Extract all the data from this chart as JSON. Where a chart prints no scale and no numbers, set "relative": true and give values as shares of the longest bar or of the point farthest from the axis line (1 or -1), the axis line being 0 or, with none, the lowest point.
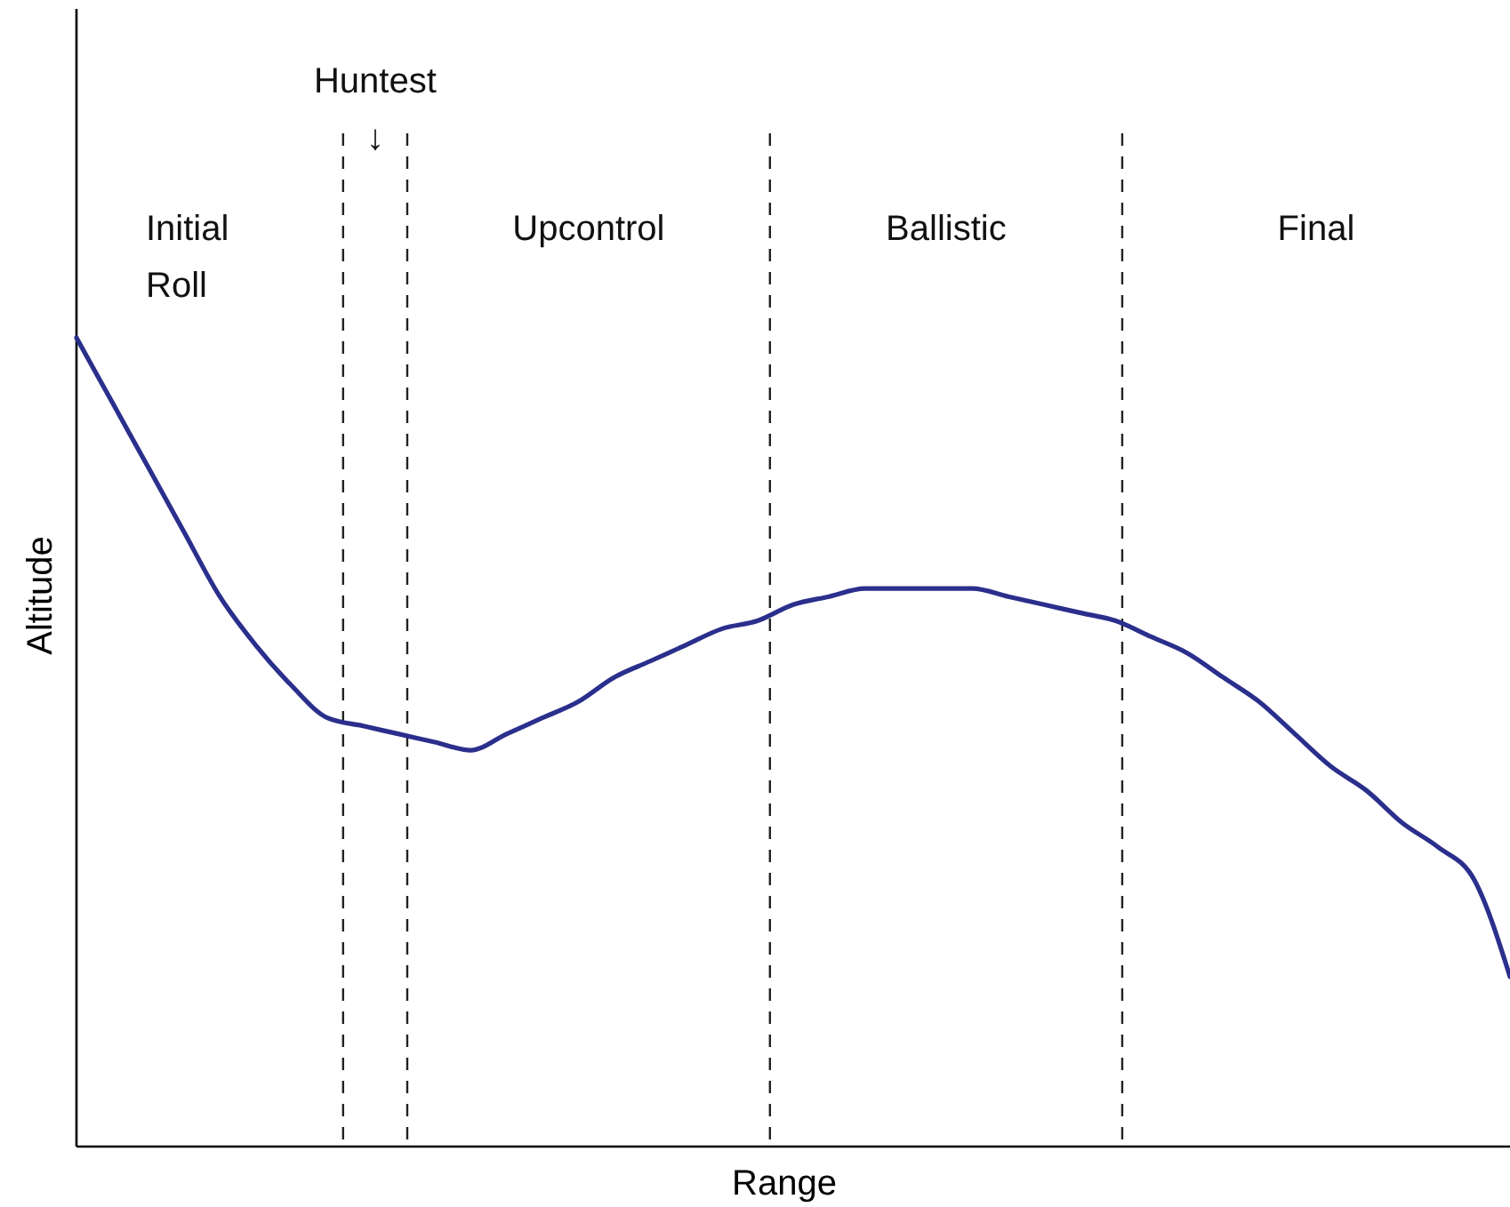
{
  "chart_data": {
    "type": "line",
    "relative": true,
    "xlabel": "Range",
    "ylabel": "Altitude",
    "marker": "none",
    "line_style": "solid",
    "categories": [
      null,
      null,
      null,
      null,
      null,
      null,
      null,
      null,
      null,
      null,
      null,
      null,
      null,
      null,
      null,
      null,
      null,
      null,
      null,
      null,
      null,
      null,
      null,
      null,
      null,
      null,
      null,
      null,
      null,
      null,
      null,
      null,
      null,
      null,
      null,
      null,
      null,
      null,
      null,
      null,
      null
    ],
    "series": [
      {
        "color": "#2b2f8c",
        "values": [
          1.0,
          0.92,
          0.84,
          0.76,
          0.68,
          0.62,
          0.57,
          0.53,
          0.52,
          0.51,
          0.5,
          0.49,
          0.51,
          0.53,
          0.55,
          0.58,
          0.6,
          0.62,
          0.64,
          0.65,
          0.67,
          0.68,
          0.69,
          0.69,
          0.69,
          0.69,
          0.68,
          0.67,
          0.66,
          0.65,
          0.63,
          0.61,
          0.58,
          0.55,
          0.51,
          0.47,
          0.44,
          0.4,
          0.37,
          0.33,
          0.21
        ]
      }
    ],
    "annotations": [
      "Initial\nRoll",
      "Huntest\n↓",
      "Upcontrol",
      "Ballistic",
      "Final"
    ]
  }
}
